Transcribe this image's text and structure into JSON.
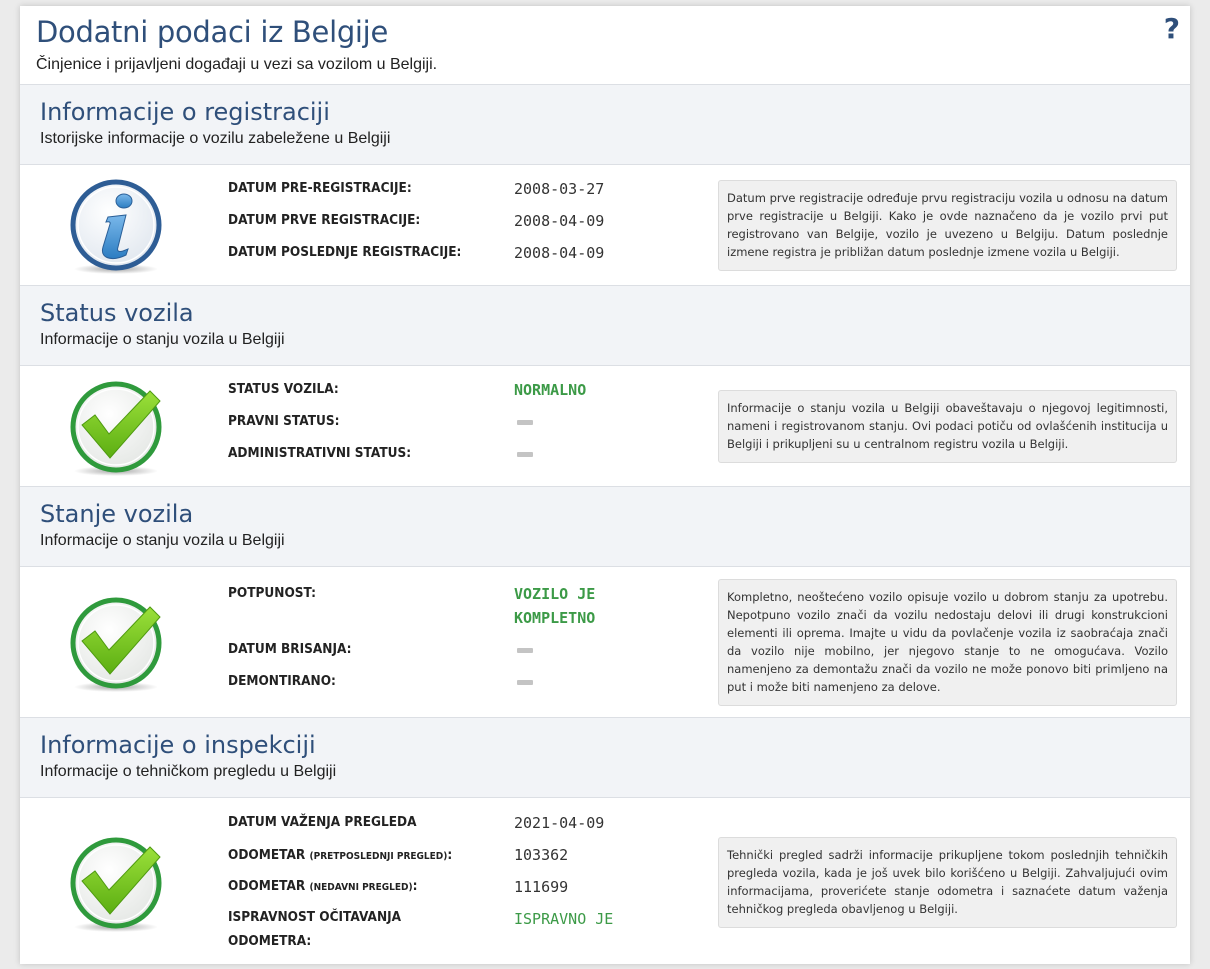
{
  "header": {
    "title": "Dodatni podaci iz Belgije",
    "subtitle": "Činjenice i prijavljeni događaji u vezi sa vozilom u Belgiji.",
    "help_icon": "question-mark-icon",
    "help_glyph": "?"
  },
  "sections": {
    "registration": {
      "title": "Informacije o registraciji",
      "subtitle": "Istorijske informacije o vozilu zabeležene u Belgiji",
      "icon": "info-icon",
      "rows": [
        {
          "label": "DATUM PRE-REGISTRACIJE:",
          "value": "2008-03-27"
        },
        {
          "label": "DATUM PRVE REGISTRACIJE:",
          "value": "2008-04-09"
        },
        {
          "label": "DATUM POSLEDNJE REGISTRACIJE:",
          "value": "2008-04-09"
        }
      ],
      "note": "Datum prve registracije određuje prvu registraciju vozila u odnosu na datum prve registracije u Belgiji. Kako je ovde naznačeno da je vozilo prvi put registrovano van Belgije, vozilo je uvezeno u Belgiju. Datum poslednje izmene registra je približan datum poslednje izmene vozila u Belgiji."
    },
    "status": {
      "title": "Status vozila",
      "subtitle": "Informacije o stanju vozila u Belgiji",
      "icon": "checkmark-icon",
      "rows": [
        {
          "label": "STATUS VOZILA:",
          "value": "NORMALNO"
        },
        {
          "label": "PRAVNI STATUS:",
          "value": null
        },
        {
          "label": "ADMINISTRATIVNI STATUS:",
          "value": null
        }
      ],
      "note": "Informacije o stanju vozila u Belgiji obaveštavaju o njegovoj legitimnosti, nameni i registrovanom stanju. Ovi podaci potiču od ovlašćenih institucija u Belgiji i prikupljeni su u centralnom registru vozila u Belgiji."
    },
    "condition": {
      "title": "Stanje vozila",
      "subtitle": "Informacije o stanju vozila u Belgiji",
      "icon": "checkmark-icon",
      "rows": [
        {
          "label": "POTPUNOST:",
          "value_line1": "VOZILO JE",
          "value_line2": "KOMPLETNO"
        },
        {
          "label": "DATUM BRISANJA:",
          "value": null
        },
        {
          "label": "DEMONTIRANO:",
          "value": null
        }
      ],
      "note": "Kompletno, neoštećeno vozilo opisuje vozilo u dobrom stanju za upotrebu. Nepotpuno vozilo znači da vozilu nedostaju delovi ili drugi konstrukcioni elementi ili oprema. Imajte u vidu da povlačenje vozila iz saobraćaja znači da vozilo nije mobilno, jer njegovo stanje to ne omogućava. Vozilo namenjeno za demontažu znači da vozilo ne može ponovo biti primljeno na put i može biti namenjeno za delove."
    },
    "inspection": {
      "title": "Informacije o inspekciji",
      "subtitle": "Informacije o tehničkom pregledu u Belgiji",
      "icon": "checkmark-icon",
      "rows": [
        {
          "label": "DATUM VAŽENJA PREGLEDA",
          "value": "2021-04-09"
        },
        {
          "label_main": "ODOMETAR",
          "label_small": "(PRETPOSLEDNJI PREGLED)",
          "label_end": ":",
          "value": "103362"
        },
        {
          "label_main": "ODOMETAR",
          "label_small": "(NEDAVNI PREGLED)",
          "label_end": ":",
          "value": "111699"
        },
        {
          "label_line1": "ISPRAVNOST OČITAVANJA",
          "label_line2": "ODOMETRA:",
          "value": "ISPRAVNO JE"
        }
      ],
      "note": "Tehnički pregled sadrži informacije prikupljene tokom poslednjih tehničkih pregleda vozila, kada je još uvek bilo korišćeno u Belgiji. Zahvaljujući ovim informacijama, proverićete stanje odometra i saznaćete datum važenja tehničkog pregleda obavljenog u Belgiji."
    }
  },
  "colors": {
    "heading": "#2f4f7a",
    "status_green": "#3c9a47",
    "section_bg": "#f2f4f7",
    "note_bg": "#f0f0f0",
    "dash": "#c4c4c4"
  }
}
